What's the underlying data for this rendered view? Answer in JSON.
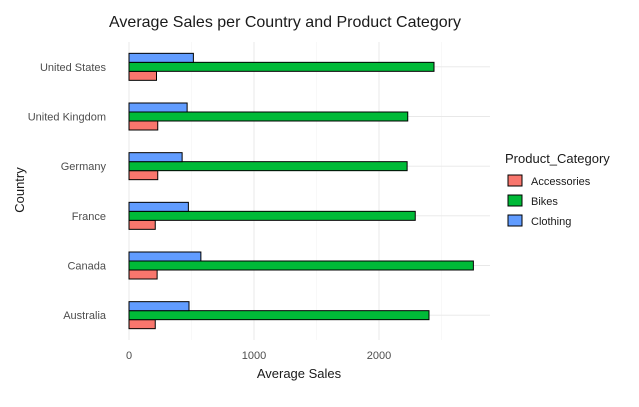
{
  "chart_data": {
    "type": "bar",
    "orientation": "horizontal",
    "title": "Average Sales per Country and Product Category",
    "xlabel": "Average Sales",
    "ylabel": "Country",
    "xlim": [
      0,
      2900
    ],
    "xticks": [
      0,
      1000,
      2000
    ],
    "grid": true,
    "legend_position": "right",
    "legend_title": "Product_Category",
    "categories": [
      "Australia",
      "Canada",
      "France",
      "Germany",
      "United Kingdom",
      "United States"
    ],
    "series": [
      {
        "name": "Accessories",
        "color": "#F8766D",
        "values": [
          210,
          225,
          210,
          230,
          230,
          220
        ]
      },
      {
        "name": "Bikes",
        "color": "#00BA38",
        "values": [
          2400,
          2755,
          2290,
          2225,
          2230,
          2440
        ]
      },
      {
        "name": "Clothing",
        "color": "#619CFF",
        "values": [
          480,
          575,
          475,
          425,
          465,
          515
        ]
      }
    ]
  }
}
